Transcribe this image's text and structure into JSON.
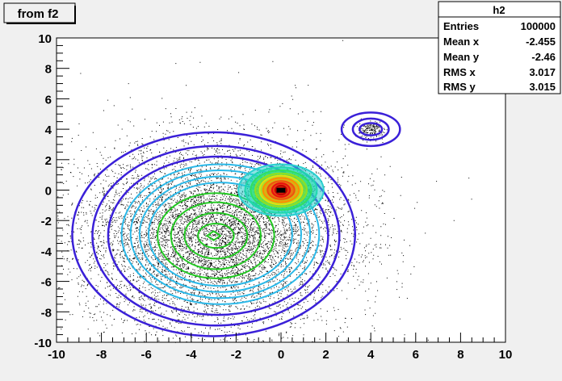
{
  "title": "from f2",
  "stats": {
    "name": "h2",
    "rows": [
      {
        "label": "Entries",
        "value": "100000"
      },
      {
        "label": "Mean x",
        "value": "-2.455"
      },
      {
        "label": "Mean y",
        "value": "-2.46"
      },
      {
        "label": "RMS x",
        "value": "3.017"
      },
      {
        "label": "RMS y",
        "value": "3.015"
      }
    ]
  },
  "chart_data": {
    "type": "scatter",
    "title": "from f2",
    "xlim": [
      -10,
      10
    ],
    "ylim": [
      -10,
      10
    ],
    "xticks": [
      -10,
      -8,
      -6,
      -4,
      -2,
      0,
      2,
      4,
      6,
      8,
      10
    ],
    "yticks": [
      -10,
      -8,
      -6,
      -4,
      -2,
      0,
      2,
      4,
      6,
      8,
      10
    ],
    "grid": false,
    "series": [
      {
        "component": "broad-peak",
        "center": [
          -3,
          -3
        ],
        "sigma": [
          3,
          3
        ]
      },
      {
        "component": "narrow-peak",
        "center": [
          0,
          0
        ],
        "sigma": [
          0.7,
          0.7
        ]
      },
      {
        "component": "small-peak",
        "center": [
          4,
          4
        ],
        "sigma": [
          0.3,
          0.3
        ]
      }
    ],
    "overlay": "contour",
    "colors": {
      "scatter": "#000000",
      "contour_outer": "#3a20d8",
      "contour_mid": "#2ab8e8",
      "contour_inner": "#22c822",
      "peak_hot": "#e81010",
      "peak_warm": "#ff8c00",
      "frame_bg": "#f0f0f0",
      "plot_bg": "#ffffff"
    }
  }
}
